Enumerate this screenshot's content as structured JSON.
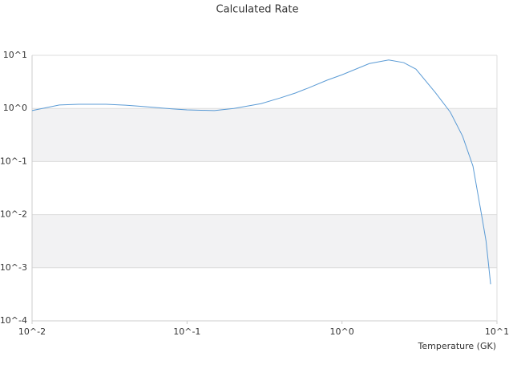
{
  "chart_data": {
    "type": "line",
    "title": "Calculated Rate",
    "x_label": "Temperature (GK)",
    "x": [
      0.01,
      0.015,
      0.02,
      0.03,
      0.04,
      0.05,
      0.06,
      0.08,
      0.1,
      0.15,
      0.2,
      0.3,
      0.4,
      0.5,
      0.6,
      0.8,
      1,
      1.5,
      2,
      2.5,
      3,
      4,
      5,
      6,
      7,
      8,
      8.5,
      9.1
    ],
    "series": [
      {
        "color": "#5b9bd5",
        "values": [
          0.91,
          1.16,
          1.2,
          1.2,
          1.15,
          1.1,
          1.05,
          0.98,
          0.94,
          0.91,
          1.0,
          1.23,
          1.58,
          1.95,
          2.4,
          3.4,
          4.3,
          7.0,
          8.2,
          7.3,
          5.5,
          2.0,
          0.85,
          0.3,
          0.082,
          0.009,
          0.0032,
          0.00049
        ]
      }
    ],
    "xscale": "log",
    "yscale": "log",
    "xlim": [
      0.01,
      10
    ],
    "ylim": [
      0.0001,
      10
    ],
    "xticks": [
      {
        "value": 0.01,
        "label": "10^-2"
      },
      {
        "value": 0.1,
        "label": "10^-1"
      },
      {
        "value": 1,
        "label": "10^0"
      },
      {
        "value": 10,
        "label": "10^1"
      }
    ],
    "yticks": [
      {
        "value": 0.0001,
        "label": "10^-4"
      },
      {
        "value": 0.001,
        "label": "10^-3"
      },
      {
        "value": 0.01,
        "label": "10^-2"
      },
      {
        "value": 0.1,
        "label": "10^-1"
      },
      {
        "value": 1,
        "label": "10^0"
      },
      {
        "value": 10,
        "label": "10^1"
      }
    ],
    "grid": true
  }
}
